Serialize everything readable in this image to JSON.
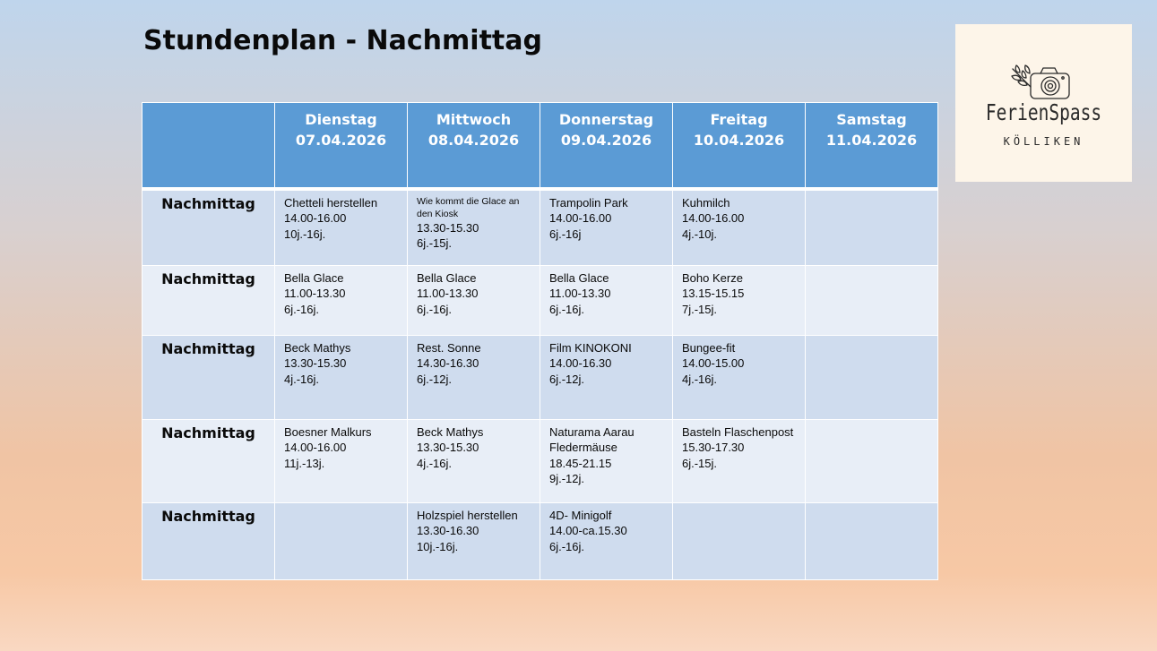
{
  "title": "Stundenplan - Nachmittag",
  "logo": {
    "main": "FerienSpass",
    "sub": "KÖLLIKEN"
  },
  "header": {
    "days": [
      {
        "name": "Dienstag",
        "date": "07.04.2026"
      },
      {
        "name": "Mittwoch",
        "date": "08.04.2026"
      },
      {
        "name": "Donnerstag",
        "date": "09.04.2026"
      },
      {
        "name": "Freitag",
        "date": "10.04.2026"
      },
      {
        "name": "Samstag",
        "date": "11.04.2026"
      }
    ]
  },
  "rows": [
    {
      "label": "Nachmittag",
      "cells": [
        [
          "Chetteli herstellen",
          "14.00-16.00",
          "10j.-16j."
        ],
        [
          "Wie kommt die Glace an den Kiosk",
          "13.30-15.30",
          "6j.-15j."
        ],
        [
          "Trampolin Park",
          "14.00-16.00",
          "6j.-16j"
        ],
        [
          "Kuhmilch",
          "14.00-16.00",
          "4j.-10j."
        ],
        []
      ]
    },
    {
      "label": "Nachmittag",
      "cells": [
        [
          "Bella Glace",
          "11.00-13.30",
          "6j.-16j."
        ],
        [
          "Bella Glace",
          "11.00-13.30",
          "6j.-16j."
        ],
        [
          "Bella Glace",
          "11.00-13.30",
          "6j.-16j."
        ],
        [
          "Boho Kerze",
          "13.15-15.15",
          "7j.-15j."
        ],
        []
      ]
    },
    {
      "label": "Nachmittag",
      "cells": [
        [
          "Beck Mathys",
          "13.30-15.30",
          "4j.-16j."
        ],
        [
          "Rest. Sonne",
          "14.30-16.30",
          "6j.-12j."
        ],
        [
          "Film KINOKONI",
          "14.00-16.30",
          "6j.-12j."
        ],
        [
          "Bungee-fit",
          "14.00-15.00",
          "4j.-16j."
        ],
        []
      ]
    },
    {
      "label": "Nachmittag",
      "cells": [
        [
          "Boesner Malkurs",
          "14.00-16.00",
          "11j.-13j."
        ],
        [
          "Beck Mathys",
          "13.30-15.30",
          "4j.-16j."
        ],
        [
          "Naturama Aarau",
          "Fledermäuse",
          "18.45-21.15",
          "9j.-12j."
        ],
        [
          "Basteln Flaschenpost",
          "15.30-17.30",
          "6j.-15j."
        ],
        []
      ]
    },
    {
      "label": "Nachmittag",
      "cells": [
        [],
        [
          "Holzspiel herstellen",
          "13.30-16.30",
          "10j.-16j."
        ],
        [
          "4D- Minigolf",
          "14.00-ca.15.30",
          "6j.-16j."
        ],
        [],
        []
      ]
    }
  ]
}
